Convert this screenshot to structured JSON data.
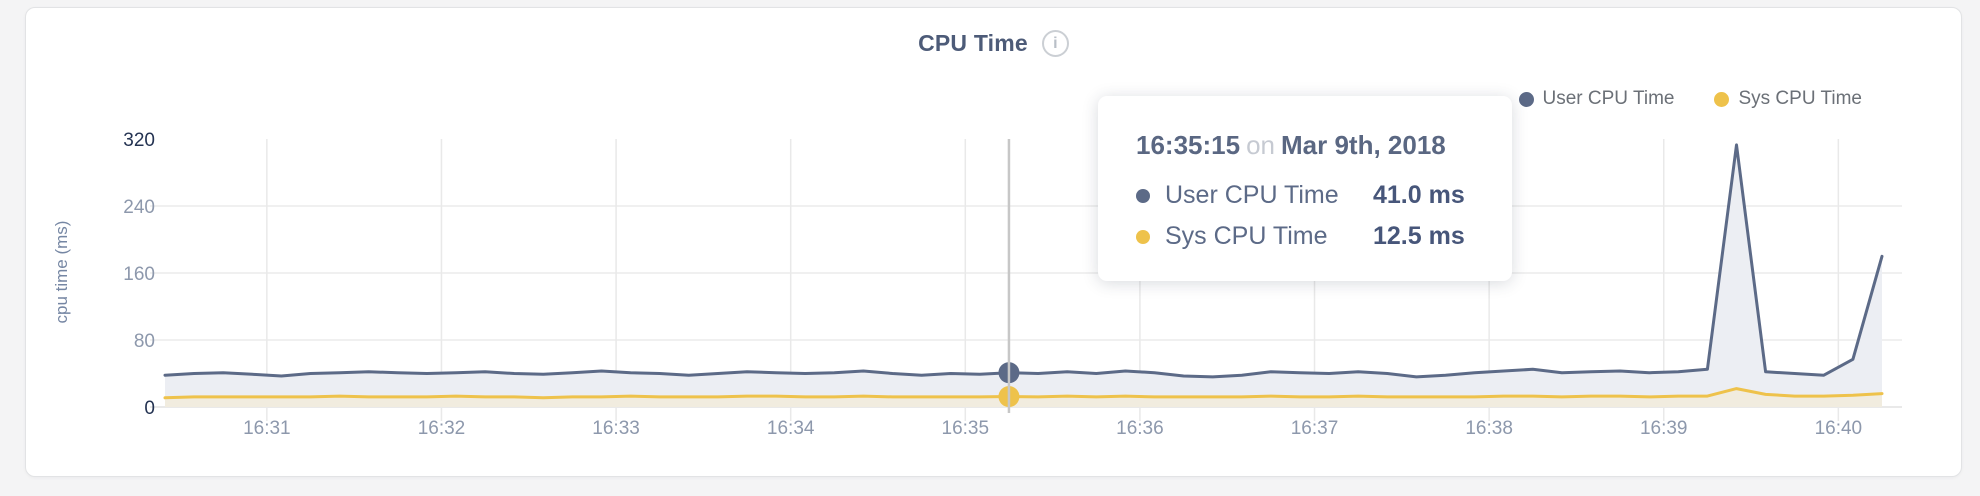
{
  "page": {
    "background": "#f4f4f5",
    "card_background": "#ffffff"
  },
  "header": {
    "title": "CPU Time",
    "info_icon_glyph": "i"
  },
  "legend": {
    "items": [
      {
        "label": "User CPU Time",
        "color": "#5c6a87"
      },
      {
        "label": "Sys CPU Time",
        "color": "#eec24b"
      }
    ]
  },
  "tooltip": {
    "time": "16:35:15",
    "conjunction": "on",
    "date": "Mar 9th, 2018",
    "rows": [
      {
        "label": "User CPU Time",
        "value": "41.0 ms",
        "color": "#5c6a87"
      },
      {
        "label": "Sys CPU Time",
        "value": "12.5 ms",
        "color": "#eec24b"
      }
    ]
  },
  "chart_data": {
    "type": "area",
    "title": "CPU Time",
    "ylabel": "cpu time (ms)",
    "xlabel": "",
    "x_start": "16:30:25",
    "x_end": "16:40:15",
    "x_interval_seconds": 10,
    "xticks": [
      "16:31",
      "16:32",
      "16:33",
      "16:34",
      "16:35",
      "16:36",
      "16:37",
      "16:38",
      "16:39",
      "16:40"
    ],
    "yticks": [
      0,
      80,
      160,
      240,
      320
    ],
    "ylim": [
      0,
      320
    ],
    "grid": true,
    "legend_position": "top-right",
    "highlight": {
      "x": "16:35:15",
      "user_ms": 41.0,
      "sys_ms": 12.5
    },
    "series": [
      {
        "name": "User CPU Time",
        "color": "#5c6a87",
        "fill": "#eceef3",
        "values": [
          38,
          40,
          41,
          39,
          37,
          40,
          41,
          42,
          41,
          40,
          41,
          42,
          40,
          39,
          41,
          43,
          41,
          40,
          38,
          40,
          42,
          41,
          40,
          41,
          43,
          40,
          38,
          40,
          39,
          41,
          40,
          42,
          40,
          43,
          41,
          37,
          36,
          38,
          42,
          41,
          40,
          42,
          40,
          36,
          38,
          41,
          43,
          45,
          41,
          42,
          43,
          41,
          42,
          45,
          313,
          42,
          40,
          38,
          57,
          180
        ]
      },
      {
        "name": "Sys CPU Time",
        "color": "#eec24b",
        "fill": "#f1ecdf",
        "values": [
          11,
          12,
          12,
          12,
          12,
          12,
          13,
          12,
          12,
          12,
          13,
          12,
          12,
          11,
          12,
          12,
          13,
          12,
          12,
          12,
          13,
          13,
          12,
          12,
          13,
          12,
          12,
          12,
          12,
          12.5,
          12,
          13,
          12,
          13,
          12,
          12,
          12,
          12,
          13,
          12,
          12,
          13,
          12,
          12,
          12,
          12,
          13,
          13,
          12,
          13,
          13,
          12,
          13,
          13,
          22,
          15,
          13,
          13,
          14,
          16
        ]
      }
    ],
    "axis_colors": {
      "tick_label": "#8d98ac",
      "tick_label_strong": "#243352",
      "axis_title": "#7586a3",
      "gridline": "#ececec",
      "baseline": "#e2e2e2",
      "crosshair": "#c7c7c7"
    }
  }
}
